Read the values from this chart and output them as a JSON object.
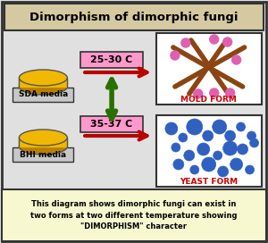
{
  "title": "Dimorphism of dimorphic fungi",
  "title_bg": "#d4c9a0",
  "main_bg": "#e0e0e0",
  "footer_bg": "#f8f8d0",
  "footer_text": "This diagram shows dimorphic fungi can exist in\ntwo forms at two different temperature showing\n\"DIMORPHISM\" character",
  "sda_label": "SDA media",
  "bhi_label": "BHI media",
  "temp1_label": "25-30 C",
  "temp2_label": "35-37 C",
  "mold_label": "MOLD FORM",
  "yeast_label": "YEAST FORM",
  "arrow_red": "#bb0000",
  "arrow_green": "#2a7000",
  "temp_box_bg": "#ff99cc",
  "disk_color_top": "#f0b800",
  "disk_color_side": "#b88000",
  "disk_outline": "#555555",
  "mold_stick_color": "#8b4513",
  "mold_dot_color": "#e060b0",
  "yeast_dot_color": "#3060c0",
  "yeast_dot_edge": "#1a3a80",
  "box_border": "#333333",
  "label_color_red": "#cc0000",
  "white": "#ffffff",
  "label_box_bg": "#c8c8c8"
}
